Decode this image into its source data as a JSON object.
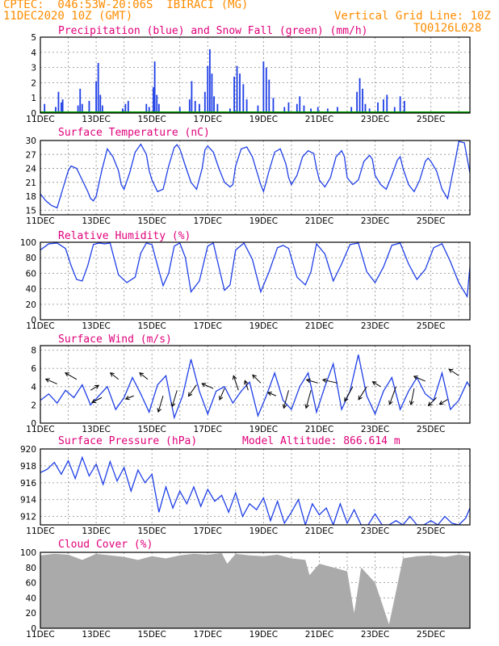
{
  "header": {
    "line1": "CPTEC:  046:53W-20:06S  IBIRACI (MG)",
    "line2": "11DEC2020 10Z (GMT)",
    "grid_note": "Vertical Grid Line: 10Z",
    "code": "TQ0126L028"
  },
  "chart_data": [
    {
      "id": "precip",
      "type": "bar",
      "title": "Precipitation (blue) and Snow Fall (green) (mm/h)",
      "ylim": [
        0,
        5
      ],
      "yticks": [
        0,
        1,
        2,
        3,
        4,
        5
      ],
      "x_labels": [
        "11DEC",
        "13DEC",
        "15DEC",
        "17DEC",
        "19DEC",
        "21DEC",
        "23DEC",
        "25DEC"
      ],
      "series": [
        {
          "name": "Precipitation",
          "color": "#1f3fe6",
          "events": [
            [
              0.3,
              0.6
            ],
            [
              1.1,
              0.4
            ],
            [
              1.3,
              1.4
            ],
            [
              1.5,
              0.7
            ],
            [
              1.6,
              0.9
            ],
            [
              2.7,
              0.5
            ],
            [
              2.85,
              1.6
            ],
            [
              3.0,
              0.6
            ],
            [
              3.5,
              0.8
            ],
            [
              4.0,
              2.1
            ],
            [
              4.15,
              3.3
            ],
            [
              4.3,
              1.2
            ],
            [
              4.45,
              0.5
            ],
            [
              5.9,
              0.3
            ],
            [
              6.1,
              0.6
            ],
            [
              6.3,
              0.8
            ],
            [
              7.6,
              0.6
            ],
            [
              7.8,
              0.4
            ],
            [
              8.1,
              1.7
            ],
            [
              8.2,
              3.4
            ],
            [
              8.35,
              1.2
            ],
            [
              8.5,
              0.6
            ],
            [
              10.0,
              0.4
            ],
            [
              10.7,
              0.9
            ],
            [
              10.85,
              2.1
            ],
            [
              11.1,
              0.8
            ],
            [
              11.4,
              0.6
            ],
            [
              11.8,
              1.4
            ],
            [
              12.0,
              3.1
            ],
            [
              12.15,
              4.2
            ],
            [
              12.3,
              2.6
            ],
            [
              12.45,
              1.1
            ],
            [
              12.7,
              0.6
            ],
            [
              13.6,
              0.3
            ],
            [
              13.9,
              2.4
            ],
            [
              14.1,
              3.1
            ],
            [
              14.3,
              2.6
            ],
            [
              14.55,
              1.9
            ],
            [
              14.8,
              0.9
            ],
            [
              15.6,
              0.5
            ],
            [
              16.0,
              3.4
            ],
            [
              16.2,
              3.0
            ],
            [
              16.4,
              2.2
            ],
            [
              16.7,
              1.0
            ],
            [
              17.5,
              0.4
            ],
            [
              17.8,
              0.7
            ],
            [
              18.4,
              0.6
            ],
            [
              18.6,
              1.1
            ],
            [
              18.9,
              0.5
            ],
            [
              19.4,
              0.3
            ],
            [
              19.9,
              0.4
            ],
            [
              20.6,
              0.3
            ],
            [
              21.3,
              0.4
            ],
            [
              22.3,
              0.4
            ],
            [
              22.7,
              1.4
            ],
            [
              22.9,
              2.3
            ],
            [
              23.1,
              1.6
            ],
            [
              23.3,
              0.6
            ],
            [
              23.6,
              0.3
            ],
            [
              24.2,
              0.7
            ],
            [
              24.6,
              0.9
            ],
            [
              24.85,
              1.2
            ],
            [
              25.4,
              0.4
            ],
            [
              25.8,
              1.1
            ],
            [
              26.1,
              0.8
            ]
          ]
        },
        {
          "name": "Snow Fall",
          "color": "#00a000",
          "values": "0"
        }
      ]
    },
    {
      "id": "temp",
      "type": "line",
      "title": "Surface Temperature (nC)",
      "ylim": [
        14,
        30
      ],
      "yticks": [
        15,
        18,
        21,
        24,
        27,
        30
      ],
      "x_labels": [
        "11DEC",
        "13DEC",
        "15DEC",
        "17DEC",
        "19DEC",
        "21DEC",
        "23DEC",
        "25DEC"
      ],
      "x": [
        0.0,
        0.4,
        0.8,
        1.2,
        1.6,
        2.0,
        2.2,
        2.6,
        3.0,
        3.4,
        3.6,
        3.8,
        4.0,
        4.4,
        4.8,
        5.2,
        5.6,
        5.8,
        6.0,
        6.4,
        6.8,
        7.2,
        7.6,
        7.8,
        8.0,
        8.4,
        8.8,
        9.2,
        9.6,
        9.8,
        10.0,
        10.4,
        10.8,
        11.2,
        11.6,
        11.8,
        12.0,
        12.4,
        12.8,
        13.2,
        13.6,
        13.8,
        14.0,
        14.4,
        14.8,
        15.2,
        15.6,
        15.8,
        16.0,
        16.4,
        16.8,
        17.2,
        17.6,
        17.8,
        18.0,
        18.4,
        18.8,
        19.2,
        19.6,
        19.8,
        20.0,
        20.4,
        20.8,
        21.2,
        21.6,
        21.8,
        22.0,
        22.4,
        22.8,
        23.2,
        23.6,
        23.8,
        24.0,
        24.4,
        24.8,
        25.2,
        25.6,
        25.8,
        26.0,
        26.4,
        26.8,
        27.2,
        27.6,
        27.8,
        28.0,
        28.4,
        28.8,
        29.2,
        29.6,
        29.8,
        30.0,
        30.4,
        30.8
      ],
      "series": [
        {
          "name": "Temperature",
          "color": "#1f3fe6",
          "values": [
            18.5,
            17.0,
            16.0,
            15.5,
            19.5,
            23.5,
            24.5,
            24.0,
            21.5,
            19.0,
            17.5,
            17.0,
            18.0,
            23.5,
            28.2,
            26.5,
            23.5,
            20.5,
            19.5,
            23.0,
            27.5,
            29.2,
            27.0,
            23.5,
            21.5,
            19.0,
            19.5,
            24.5,
            28.5,
            29.1,
            28.2,
            24.5,
            21.0,
            19.5,
            24.0,
            28.0,
            28.8,
            27.5,
            24.0,
            21.0,
            20.0,
            20.5,
            24.5,
            28.2,
            28.6,
            26.5,
            22.5,
            20.5,
            19.0,
            23.5,
            27.5,
            28.2,
            25.0,
            22.0,
            20.5,
            22.5,
            26.5,
            27.8,
            27.2,
            24.0,
            21.5,
            20.0,
            22.0,
            26.5,
            27.8,
            26.5,
            22.0,
            20.5,
            21.5,
            25.5,
            26.8,
            26.0,
            22.5,
            20.5,
            19.5,
            22.5,
            25.8,
            26.5,
            24.0,
            20.5,
            19.0,
            21.5,
            25.5,
            26.2,
            25.5,
            23.5,
            19.5,
            17.5,
            23.5,
            26.5,
            29.8,
            29.5,
            23.0
          ]
        }
      ]
    },
    {
      "id": "rh",
      "type": "line",
      "title": "Relative Humidity (%)",
      "ylim": [
        0,
        100
      ],
      "yticks": [
        0,
        20,
        40,
        60,
        80,
        100
      ],
      "x_labels": [
        "11DEC",
        "13DEC",
        "15DEC",
        "17DEC",
        "19DEC",
        "21DEC",
        "23DEC",
        "25DEC"
      ],
      "x": [
        0.0,
        0.6,
        1.2,
        1.8,
        2.2,
        2.6,
        3.0,
        3.4,
        3.8,
        4.2,
        4.6,
        5.0,
        5.6,
        6.2,
        6.8,
        7.2,
        7.6,
        8.0,
        8.4,
        8.8,
        9.2,
        9.6,
        10.0,
        10.4,
        10.8,
        11.4,
        12.0,
        12.4,
        12.8,
        13.2,
        13.6,
        14.0,
        14.6,
        15.2,
        15.8,
        16.4,
        17.0,
        17.4,
        17.8,
        18.4,
        19.0,
        19.4,
        19.8,
        20.4,
        21.0,
        21.6,
        22.2,
        22.8,
        23.4,
        24.0,
        24.6,
        25.2,
        25.8,
        26.4,
        27.0,
        27.6,
        28.2,
        28.8,
        29.4,
        30.0,
        30.6,
        30.8
      ],
      "series": [
        {
          "name": "Humidity",
          "color": "#1f3fe6",
          "values": [
            90,
            98,
            99,
            92,
            70,
            52,
            50,
            70,
            97,
            99,
            98,
            99,
            58,
            48,
            55,
            86,
            99,
            97,
            70,
            44,
            60,
            95,
            99,
            80,
            36,
            50,
            95,
            99,
            68,
            38,
            45,
            90,
            99,
            78,
            36,
            62,
            93,
            96,
            92,
            55,
            45,
            62,
            98,
            85,
            50,
            72,
            97,
            99,
            62,
            48,
            68,
            96,
            99,
            72,
            52,
            65,
            93,
            98,
            75,
            48,
            30,
            68
          ]
        }
      ]
    },
    {
      "id": "wind",
      "type": "line",
      "title": "Surface Wind (m/s)",
      "ylim": [
        0,
        8.5
      ],
      "yticks": [
        0,
        2,
        4,
        6,
        8
      ],
      "x_labels": [
        "11DEC",
        "13DEC",
        "15DEC",
        "17DEC",
        "19DEC",
        "21DEC",
        "23DEC",
        "25DEC"
      ],
      "x": [
        0.0,
        0.6,
        1.2,
        1.8,
        2.4,
        3.0,
        3.6,
        4.2,
        4.8,
        5.4,
        6.0,
        6.6,
        7.2,
        7.8,
        8.4,
        9.0,
        9.6,
        10.2,
        10.8,
        11.4,
        12.0,
        12.6,
        13.2,
        13.8,
        14.4,
        15.0,
        15.6,
        16.2,
        16.8,
        17.4,
        18.0,
        18.6,
        19.2,
        19.8,
        20.4,
        21.0,
        21.6,
        22.2,
        22.8,
        23.4,
        24.0,
        24.6,
        25.2,
        25.8,
        26.4,
        27.0,
        27.6,
        28.2,
        28.8,
        29.4,
        30.0,
        30.6,
        30.8
      ],
      "series": [
        {
          "name": "Wind speed",
          "color": "#1f3fe6",
          "values": [
            2.5,
            3.2,
            2.2,
            3.6,
            2.8,
            4.2,
            2.0,
            3.0,
            4.0,
            1.5,
            2.8,
            5.0,
            3.2,
            1.2,
            4.2,
            5.2,
            0.6,
            3.0,
            7.0,
            3.5,
            1.0,
            3.5,
            4.0,
            2.2,
            3.5,
            4.5,
            0.8,
            3.0,
            5.5,
            2.5,
            1.5,
            4.0,
            5.5,
            1.2,
            4.0,
            6.5,
            1.5,
            3.5,
            7.5,
            3.0,
            1.0,
            3.5,
            5.0,
            1.5,
            3.5,
            5.0,
            3.2,
            2.5,
            5.5,
            1.5,
            2.5,
            4.5,
            4.0
          ]
        }
      ]
    },
    {
      "id": "pressure",
      "type": "line",
      "title": "Surface Pressure (hPa)",
      "annotation": "Model Altitude: 866.614 m",
      "ylim": [
        911,
        920
      ],
      "yticks": [
        912,
        914,
        916,
        918,
        920
      ],
      "x_labels": [
        "11DEC",
        "13DEC",
        "15DEC",
        "17DEC",
        "19DEC",
        "21DEC",
        "23DEC",
        "25DEC"
      ],
      "x": [
        0.0,
        0.5,
        1.0,
        1.5,
        2.0,
        2.5,
        3.0,
        3.5,
        4.0,
        4.5,
        5.0,
        5.5,
        6.0,
        6.5,
        7.0,
        7.5,
        8.0,
        8.5,
        9.0,
        9.5,
        10.0,
        10.5,
        11.0,
        11.5,
        12.0,
        12.5,
        13.0,
        13.5,
        14.0,
        14.5,
        15.0,
        15.5,
        16.0,
        16.5,
        17.0,
        17.5,
        18.0,
        18.5,
        19.0,
        19.5,
        20.0,
        20.5,
        21.0,
        21.5,
        22.0,
        22.5,
        23.0,
        23.5,
        24.0,
        24.5,
        25.0,
        25.5,
        26.0,
        26.5,
        27.0,
        27.5,
        28.0,
        28.5,
        29.0,
        29.5,
        30.0,
        30.5,
        30.8
      ],
      "series": [
        {
          "name": "Pressure",
          "color": "#1f3fe6",
          "values": [
            917.2,
            917.6,
            918.4,
            917.0,
            918.6,
            916.5,
            919.0,
            916.8,
            918.2,
            915.8,
            918.5,
            916.2,
            917.8,
            915.0,
            917.5,
            916.0,
            917.0,
            912.5,
            915.5,
            913.0,
            915.0,
            913.5,
            915.5,
            913.2,
            915.2,
            913.8,
            914.5,
            912.5,
            914.8,
            912.0,
            913.5,
            912.8,
            914.2,
            911.5,
            913.8,
            911.2,
            912.5,
            914.0,
            911.0,
            913.5,
            912.2,
            913.0,
            911.0,
            913.5,
            911.2,
            912.8,
            911.0,
            911.0,
            912.3,
            911.0,
            911.0,
            911.5,
            911.0,
            912.0,
            911.0,
            911.0,
            911.5,
            911.0,
            912.0,
            911.2,
            911.0,
            911.8,
            913.0
          ]
        }
      ]
    },
    {
      "id": "cloud",
      "type": "area",
      "title": "Cloud Cover (%)",
      "ylim": [
        0,
        100
      ],
      "yticks": [
        0,
        20,
        40,
        60,
        80,
        100
      ],
      "x_labels": [
        "11DEC",
        "13DEC",
        "15DEC",
        "17DEC",
        "19DEC",
        "21DEC",
        "23DEC",
        "25DEC"
      ],
      "x": [
        0.0,
        1.0,
        2.0,
        3.0,
        4.0,
        5.0,
        6.0,
        7.0,
        8.0,
        9.0,
        10.0,
        11.0,
        12.0,
        13.0,
        13.4,
        14.0,
        15.0,
        16.0,
        17.0,
        18.0,
        19.0,
        19.3,
        20.0,
        21.0,
        22.0,
        22.5,
        23.0,
        24.0,
        25.0,
        26.0,
        27.0,
        28.0,
        29.0,
        30.0,
        30.8
      ],
      "series": [
        {
          "name": "Cloud cover",
          "color": "#aaaaaa",
          "values": [
            96,
            98,
            97,
            90,
            98,
            96,
            94,
            90,
            95,
            92,
            96,
            98,
            97,
            99,
            85,
            98,
            96,
            95,
            97,
            92,
            90,
            70,
            85,
            80,
            75,
            20,
            80,
            60,
            5,
            92,
            95,
            96,
            94,
            97,
            95
          ]
        }
      ]
    }
  ]
}
